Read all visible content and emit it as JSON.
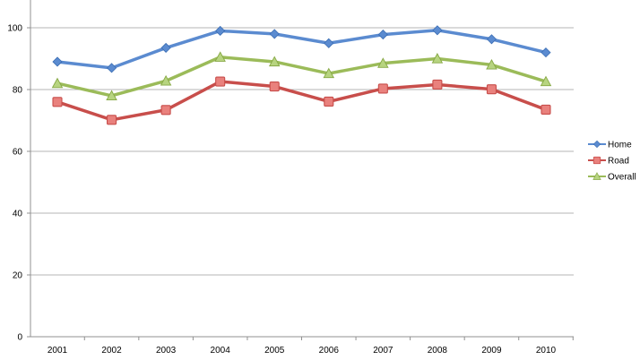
{
  "chart_data": {
    "type": "line",
    "title": "",
    "xlabel": "",
    "ylabel": "",
    "categories": [
      "2001",
      "2002",
      "2003",
      "2004",
      "2005",
      "2006",
      "2007",
      "2008",
      "2009",
      "2010"
    ],
    "ylim": [
      0,
      110
    ],
    "yticks": [
      0,
      20,
      40,
      60,
      80,
      100
    ],
    "grid": "horizontal",
    "legend_position": "right",
    "series": [
      {
        "name": "Home",
        "color": "#5b8bd0",
        "marker": "diamond",
        "values": [
          89,
          87,
          93.5,
          99,
          98,
          95,
          97.8,
          99.2,
          96.3,
          92
        ]
      },
      {
        "name": "Road",
        "color": "#c84e4b",
        "marker": "square",
        "values": [
          76,
          70.2,
          73.4,
          82.6,
          81,
          76.1,
          80.3,
          81.6,
          80.1,
          73.5
        ]
      },
      {
        "name": "Overall",
        "color": "#9bbb59",
        "marker": "triangle",
        "values": [
          82,
          78,
          82.8,
          90.5,
          89,
          85.2,
          88.5,
          90,
          88,
          82.6
        ]
      }
    ]
  }
}
